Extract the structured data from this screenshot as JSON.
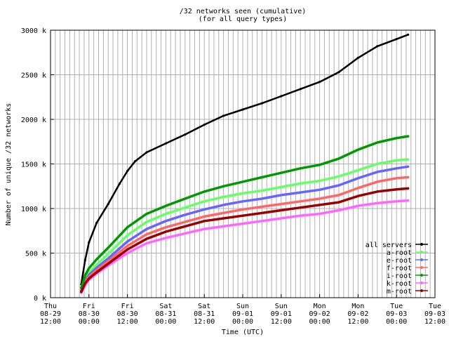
{
  "chart_data": {
    "type": "line",
    "title": "/32 networks seen (cumulative)",
    "subtitle": "(for all query types)",
    "xlabel": "Time (UTC)",
    "ylabel": "Number of unique /32 networks",
    "y_ticks": [
      "0 k",
      "500 k",
      "1000 k",
      "1500 k",
      "2000 k",
      "2500 k",
      "3000 k"
    ],
    "ylim": [
      0,
      3000
    ],
    "xlim": [
      0,
      10
    ],
    "x_ticks": [
      {
        "day": "Thu",
        "date": "08-29",
        "time": "12:00"
      },
      {
        "day": "Fri",
        "date": "08-30",
        "time": "00:00"
      },
      {
        "day": "Fri",
        "date": "08-30",
        "time": "12:00"
      },
      {
        "day": "Sat",
        "date": "08-31",
        "time": "00:00"
      },
      {
        "day": "Sat",
        "date": "08-31",
        "time": "12:00"
      },
      {
        "day": "Sun",
        "date": "09-01",
        "time": "00:00"
      },
      {
        "day": "Sun",
        "date": "09-01",
        "time": "12:00"
      },
      {
        "day": "Mon",
        "date": "09-02",
        "time": "00:00"
      },
      {
        "day": "Mon",
        "date": "09-02",
        "time": "12:00"
      },
      {
        "day": "Tue",
        "date": "09-03",
        "time": "00:00"
      },
      {
        "day": "Tue",
        "date": "09-03",
        "time": "12:00"
      }
    ],
    "grid": true,
    "legend_position": "bottom-right",
    "x_unit": "half-days since 08-29 12:00",
    "series": [
      {
        "name": "all servers",
        "color": "#000000",
        "x": [
          0.8,
          0.9,
          1.0,
          1.2,
          1.5,
          1.8,
          2.0,
          2.2,
          2.5,
          3.0,
          3.5,
          4.0,
          4.5,
          5.0,
          5.5,
          6.0,
          6.5,
          7.0,
          7.5,
          8.0,
          8.5,
          9.0,
          9.3
        ],
        "values": [
          150,
          420,
          620,
          840,
          1050,
          1280,
          1420,
          1530,
          1630,
          1730,
          1830,
          1940,
          2040,
          2110,
          2180,
          2260,
          2340,
          2420,
          2530,
          2690,
          2820,
          2900,
          2950
        ]
      },
      {
        "name": "a-root",
        "color": "#66ff66",
        "x": [
          0.8,
          0.9,
          1.0,
          1.2,
          1.5,
          2.0,
          2.5,
          3.0,
          3.5,
          4.0,
          4.5,
          5.0,
          5.5,
          6.0,
          6.5,
          7.0,
          7.5,
          8.0,
          8.5,
          9.0,
          9.3
        ],
        "values": [
          90,
          210,
          280,
          370,
          490,
          700,
          850,
          940,
          1010,
          1080,
          1130,
          1170,
          1200,
          1240,
          1280,
          1310,
          1360,
          1430,
          1500,
          1540,
          1550
        ]
      },
      {
        "name": "e-root",
        "color": "#6666ff",
        "x": [
          0.8,
          0.9,
          1.0,
          1.2,
          1.5,
          2.0,
          2.5,
          3.0,
          3.5,
          4.0,
          4.5,
          5.0,
          5.5,
          6.0,
          6.5,
          7.0,
          7.5,
          8.0,
          8.5,
          9.0,
          9.3
        ],
        "values": [
          80,
          190,
          255,
          335,
          440,
          630,
          770,
          860,
          930,
          990,
          1040,
          1080,
          1110,
          1150,
          1180,
          1210,
          1260,
          1340,
          1410,
          1450,
          1470
        ]
      },
      {
        "name": "f-root",
        "color": "#ff6666",
        "x": [
          0.8,
          0.9,
          1.0,
          1.2,
          1.5,
          2.0,
          2.5,
          3.0,
          3.5,
          4.0,
          4.5,
          5.0,
          5.5,
          6.0,
          6.5,
          7.0,
          7.5,
          8.0,
          8.5,
          9.0,
          9.3
        ],
        "values": [
          75,
          175,
          235,
          310,
          410,
          580,
          710,
          790,
          850,
          910,
          950,
          990,
          1020,
          1050,
          1080,
          1110,
          1150,
          1230,
          1300,
          1340,
          1350
        ]
      },
      {
        "name": "i-root",
        "color": "#009900",
        "x": [
          0.8,
          0.9,
          1.0,
          1.2,
          1.5,
          2.0,
          2.5,
          3.0,
          3.5,
          4.0,
          4.5,
          5.0,
          5.5,
          6.0,
          6.5,
          7.0,
          7.5,
          8.0,
          8.5,
          9.0,
          9.3
        ],
        "values": [
          110,
          250,
          330,
          430,
          560,
          790,
          940,
          1030,
          1110,
          1190,
          1250,
          1300,
          1350,
          1400,
          1450,
          1490,
          1560,
          1660,
          1740,
          1790,
          1810
        ]
      },
      {
        "name": "k-root",
        "color": "#ff66ff",
        "x": [
          0.8,
          0.9,
          1.0,
          1.2,
          1.5,
          2.0,
          2.5,
          3.0,
          3.5,
          4.0,
          4.5,
          5.0,
          5.5,
          6.0,
          6.5,
          7.0,
          7.5,
          8.0,
          8.5,
          9.0,
          9.3
        ],
        "values": [
          55,
          140,
          200,
          270,
          360,
          500,
          610,
          670,
          720,
          770,
          800,
          830,
          860,
          890,
          920,
          940,
          980,
          1030,
          1060,
          1080,
          1090
        ]
      },
      {
        "name": "m-root",
        "color": "#990000",
        "x": [
          0.8,
          0.9,
          1.0,
          1.2,
          1.5,
          2.0,
          2.5,
          3.0,
          3.5,
          4.0,
          4.5,
          5.0,
          5.5,
          6.0,
          6.5,
          7.0,
          7.5,
          8.0,
          8.5,
          9.0,
          9.3
        ],
        "values": [
          65,
          160,
          215,
          285,
          380,
          540,
          660,
          740,
          800,
          860,
          890,
          920,
          950,
          980,
          1010,
          1040,
          1070,
          1140,
          1190,
          1215,
          1225
        ]
      }
    ]
  }
}
